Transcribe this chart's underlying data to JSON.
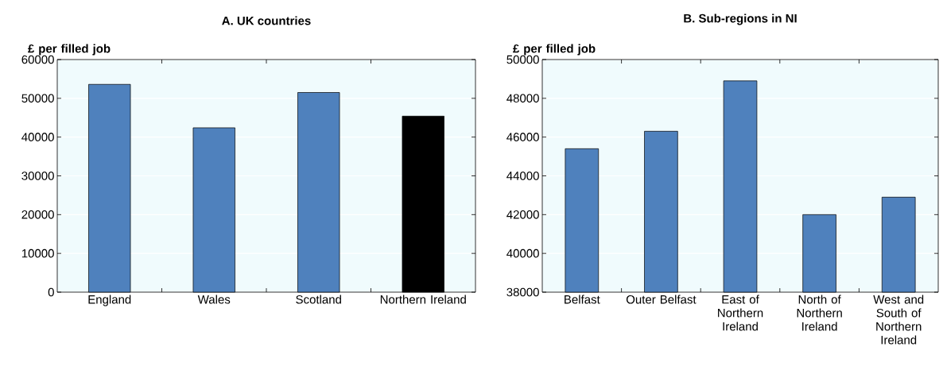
{
  "chart_data": [
    {
      "type": "bar",
      "title": "A. UK countries",
      "ylabel": "£ per filled job",
      "categories": [
        "England",
        "Wales",
        "Scotland",
        "Northern Ireland"
      ],
      "values": [
        53600,
        42400,
        51500,
        45400
      ],
      "colors": [
        "#4f81bd",
        "#4f81bd",
        "#4f81bd",
        "#000000"
      ],
      "ylim": [
        0,
        60000
      ],
      "yticks": [
        0,
        10000,
        20000,
        30000,
        40000,
        50000,
        60000
      ],
      "grid": "y"
    },
    {
      "type": "bar",
      "title": "B. Sub-regions in NI",
      "ylabel": "£ per filled job",
      "categories": [
        "Belfast",
        "Outer Belfast",
        "East of Northern Ireland",
        "North of Northern Ireland",
        "West and South of Northern Ireland"
      ],
      "values": [
        45400,
        46300,
        48900,
        42000,
        42900
      ],
      "colors": [
        "#4f81bd",
        "#4f81bd",
        "#4f81bd",
        "#4f81bd",
        "#4f81bd"
      ],
      "ylim": [
        38000,
        50000
      ],
      "yticks": [
        38000,
        40000,
        42000,
        44000,
        46000,
        48000,
        50000
      ],
      "grid": "y"
    }
  ]
}
